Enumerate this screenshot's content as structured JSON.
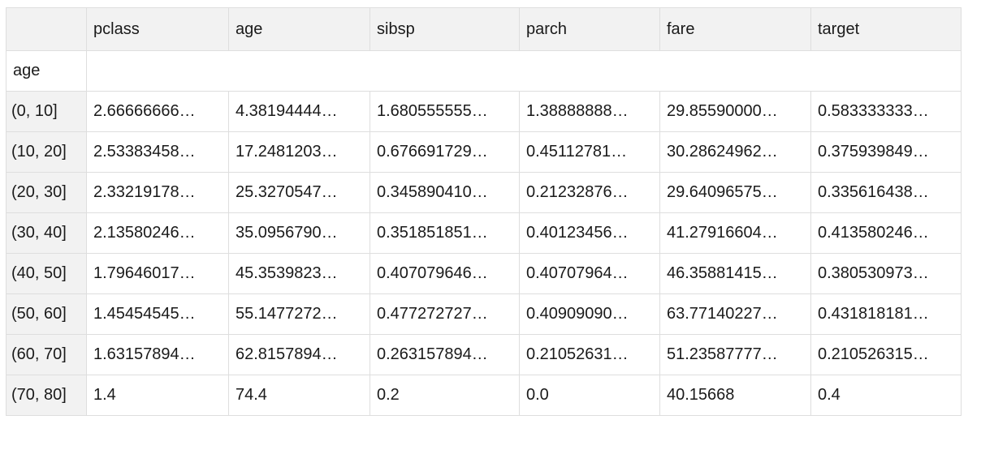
{
  "table": {
    "corner_label": "",
    "columns": [
      "pclass",
      "age",
      "sibsp",
      "parch",
      "fare",
      "target"
    ],
    "index_name": "age",
    "rows": [
      {
        "label": "(0, 10]",
        "cells": [
          "2.66666666…",
          "4.38194444…",
          "1.680555555…",
          "1.38888888…",
          "29.85590000…",
          "0.583333333…"
        ]
      },
      {
        "label": "(10, 20]",
        "cells": [
          "2.53383458…",
          "17.2481203…",
          "0.676691729…",
          "0.45112781…",
          "30.28624962…",
          "0.375939849…"
        ]
      },
      {
        "label": "(20, 30]",
        "cells": [
          "2.33219178…",
          "25.3270547…",
          "0.345890410…",
          "0.21232876…",
          "29.64096575…",
          "0.335616438…"
        ]
      },
      {
        "label": "(30, 40]",
        "cells": [
          "2.13580246…",
          "35.0956790…",
          "0.351851851…",
          "0.40123456…",
          "41.27916604…",
          "0.413580246…"
        ]
      },
      {
        "label": "(40, 50]",
        "cells": [
          "1.79646017…",
          "45.3539823…",
          "0.407079646…",
          "0.40707964…",
          "46.35881415…",
          "0.380530973…"
        ]
      },
      {
        "label": "(50, 60]",
        "cells": [
          "1.45454545…",
          "55.1477272…",
          "0.477272727…",
          "0.40909090…",
          "63.77140227…",
          "0.431818181…"
        ]
      },
      {
        "label": "(60, 70]",
        "cells": [
          "1.63157894…",
          "62.8157894…",
          "0.263157894…",
          "0.21052631…",
          "51.23587777…",
          "0.210526315…"
        ]
      },
      {
        "label": "(70, 80]",
        "cells": [
          "1.4",
          "74.4",
          "0.2",
          "0.0",
          "40.15668",
          "0.4"
        ]
      }
    ]
  }
}
